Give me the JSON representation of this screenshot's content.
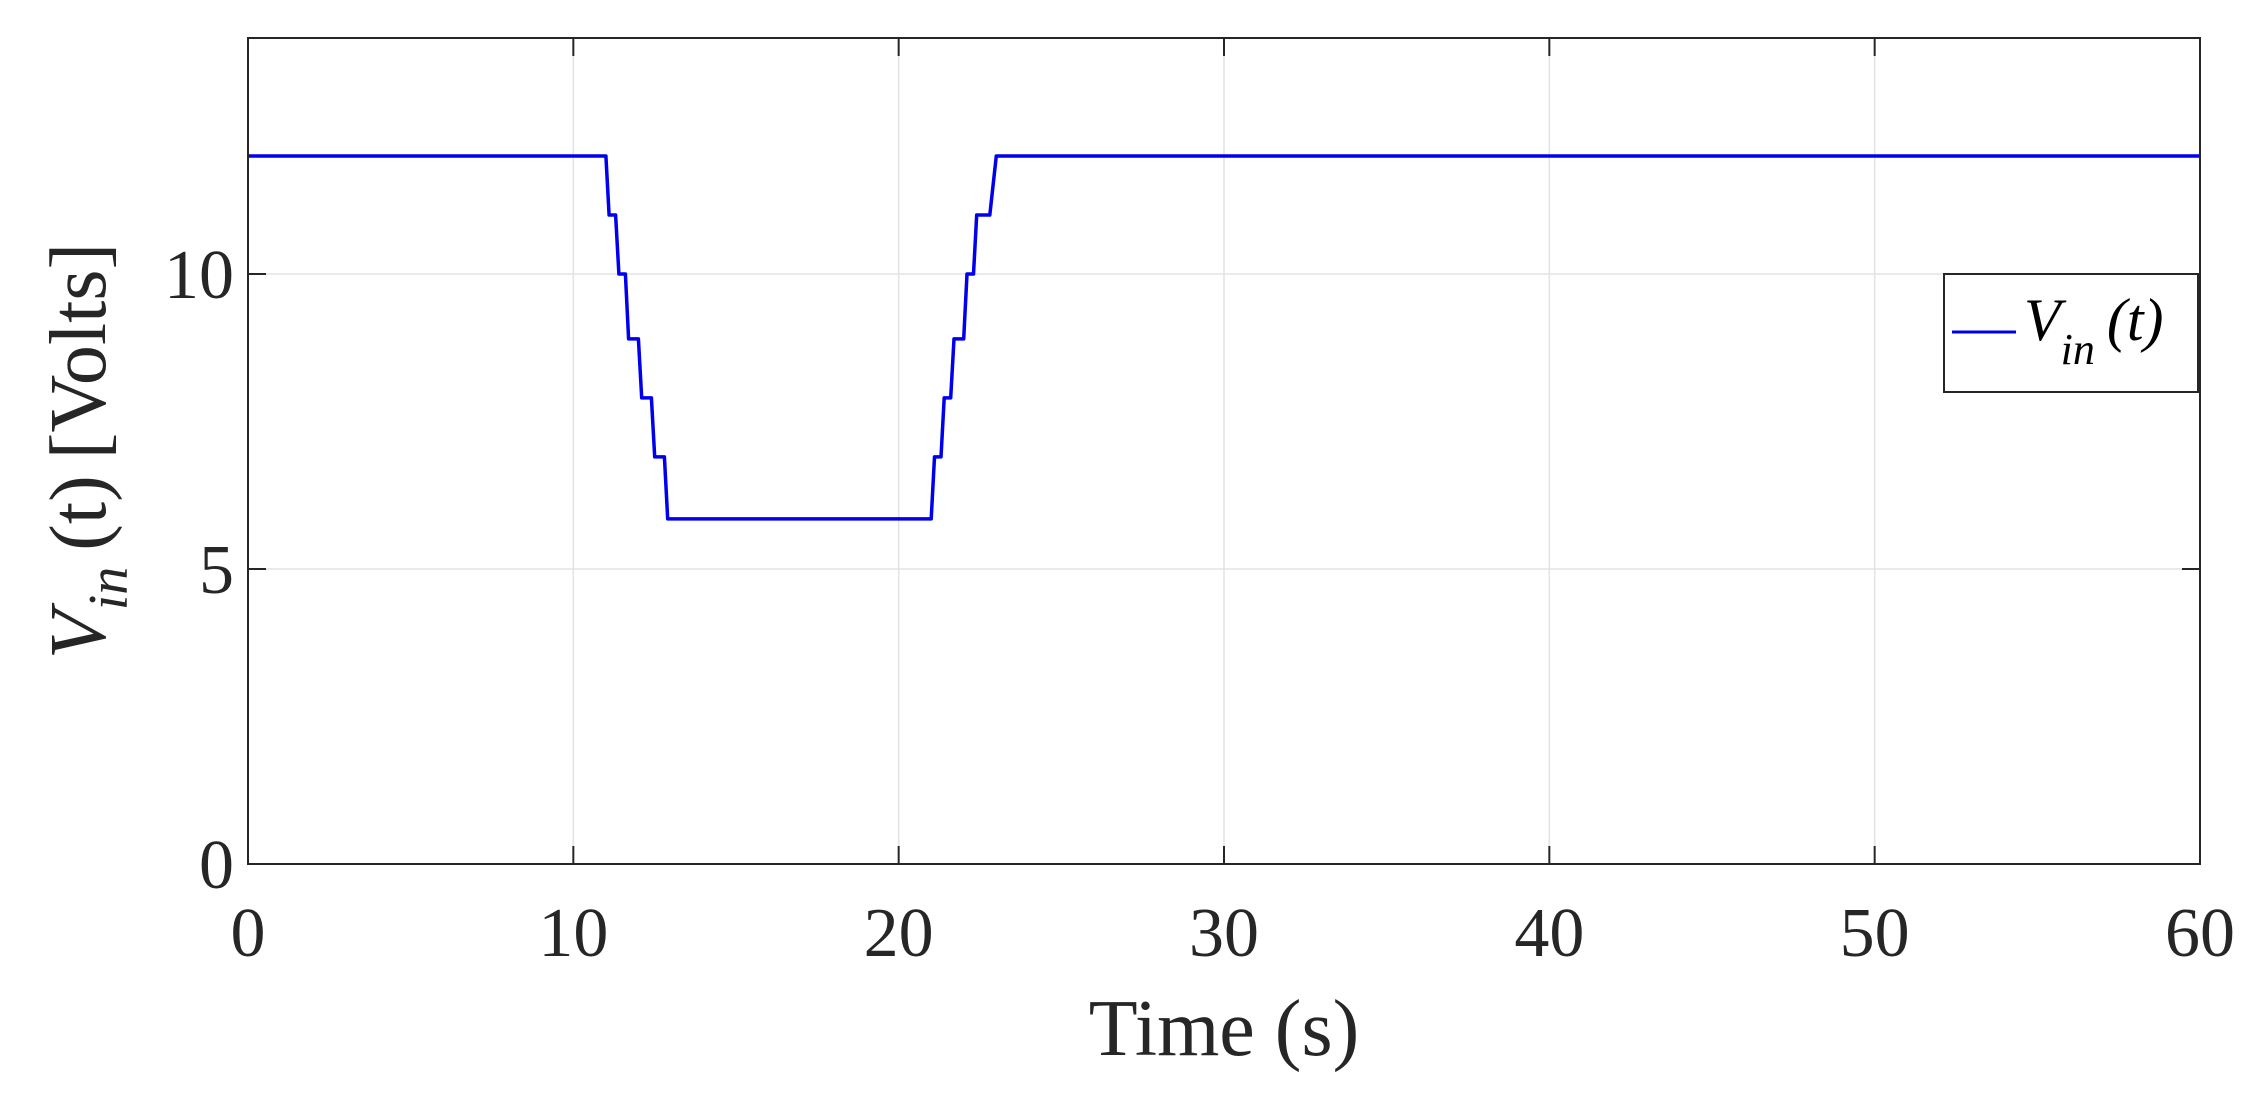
{
  "chart_data": {
    "type": "line",
    "xlabel": "Time (s)",
    "ylabel": {
      "symbol": "V",
      "subscript": "in",
      "argument": "(t)",
      "unit": "[Volts]"
    },
    "xlim": [
      0,
      60
    ],
    "ylim": [
      0,
      14
    ],
    "x_ticks": [
      0,
      10,
      20,
      30,
      40,
      50,
      60
    ],
    "y_ticks": [
      0,
      5,
      10
    ],
    "grid": true,
    "legend": {
      "placement": "right",
      "entries": [
        {
          "symbol": "V",
          "subscript": "in",
          "argument": "(t)"
        }
      ]
    },
    "series": [
      {
        "color": "#0000ee",
        "x": [
          0,
          11.0,
          11.1,
          11.3,
          11.4,
          11.6,
          11.7,
          12.0,
          12.1,
          12.4,
          12.5,
          12.8,
          12.9,
          13.2,
          13.3,
          21.0,
          21.1,
          21.3,
          21.4,
          21.6,
          21.7,
          22.0,
          22.1,
          22.3,
          22.4,
          22.7,
          22.8,
          23.0,
          23.1,
          60
        ],
        "y": [
          12.0,
          12.0,
          11.0,
          11.0,
          10.0,
          10.0,
          8.9,
          8.9,
          7.9,
          7.9,
          6.9,
          6.9,
          5.85,
          5.85,
          5.85,
          5.85,
          6.9,
          6.9,
          7.9,
          7.9,
          8.9,
          8.9,
          10.0,
          10.0,
          11.0,
          11.0,
          11.0,
          12.0,
          12.0,
          12.0
        ]
      }
    ]
  }
}
